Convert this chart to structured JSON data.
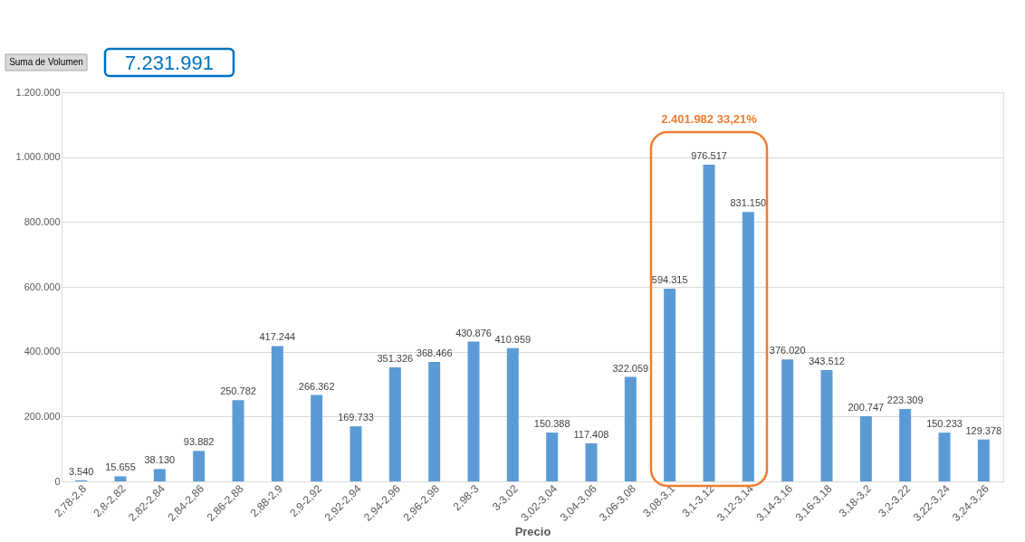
{
  "chart_data": {
    "type": "bar",
    "xlabel": "Precio",
    "categories": [
      "2,78-2,8",
      "2,8-2,82",
      "2,82-2,84",
      "2,84-2,86",
      "2,86-2,88",
      "2,88-2,9",
      "2,9-2,92",
      "2,92-2,94",
      "2,94-2,96",
      "2,96-2,98",
      "2,98-3",
      "3-3,02",
      "3,02-3,04",
      "3,04-3,06",
      "3,06-3,08",
      "3,08-3,1",
      "3,1-3,12",
      "3,12-3,14",
      "3,14-3,16",
      "3,16-3,18",
      "3,18-3,2",
      "3,2-3,22",
      "3,22-3,24",
      "3,24-3,26"
    ],
    "values": [
      3540,
      15655,
      38130,
      93882,
      250782,
      417244,
      266362,
      169733,
      351326,
      368466,
      430876,
      410959,
      150388,
      117408,
      322059,
      594315,
      976517,
      831150,
      376020,
      343512,
      200747,
      223309,
      150233,
      129378
    ],
    "value_labels": [
      "3.540",
      "15.655",
      "38.130",
      "93.882",
      "250.782",
      "417.244",
      "266.362",
      "169.733",
      "351.326",
      "368.466",
      "430.876",
      "410.959",
      "150.388",
      "117.408",
      "322.059",
      "594.315",
      "976.517",
      "831.150",
      "376.020",
      "343.512",
      "200.747",
      "223.309",
      "150.233",
      "129.378"
    ],
    "color": "#5b9bd5",
    "ylim": [
      0,
      1200000
    ],
    "yticks": [
      {
        "value": 0,
        "label": "0"
      },
      {
        "value": 200000,
        "label": "200.000"
      },
      {
        "value": 400000,
        "label": "400.000"
      },
      {
        "value": 600000,
        "label": "600.000"
      },
      {
        "value": 800000,
        "label": "800.000"
      },
      {
        "value": 1000000,
        "label": "1.000.000"
      },
      {
        "value": 1200000,
        "label": "1.200.000"
      }
    ],
    "grid": "y",
    "annotations": [
      "Suma de Volumen",
      "7.231.991",
      "2.401.982  33,21%"
    ]
  }
}
